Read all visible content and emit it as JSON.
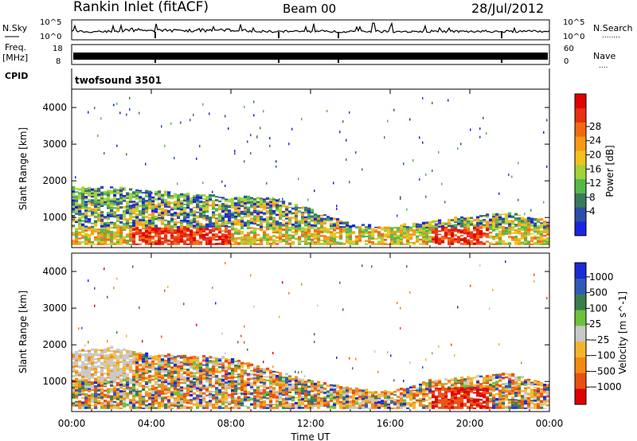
{
  "header": {
    "station": "Rankin Inlet (fitACF)",
    "beam": "Beam 00",
    "date": "28/Jul/2012"
  },
  "noise_panel": {
    "left_label": "N.Sky",
    "right_label": "N.Search",
    "tick_top_left": "10^5",
    "tick_bottom_left": "10^0",
    "tick_top_right": "10^5",
    "tick_bottom_right": "10^0",
    "legend_dots": "........"
  },
  "freq_panel": {
    "left_label": "Freq.",
    "left_unit": "[MHz]",
    "right_label": "Nave",
    "left_ticks": [
      "18",
      "8"
    ],
    "right_ticks": [
      "60",
      "0"
    ],
    "legend_dots": "...."
  },
  "cpid_panel": {
    "label": "CPID",
    "value": "twofsound 3501"
  },
  "chart_data": [
    {
      "type": "heatmap",
      "name": "power",
      "ylabel": "Slant Range [km]",
      "y_ticks": [
        "1000",
        "2000",
        "3000",
        "4000"
      ],
      "ylim": [
        180,
        4500
      ],
      "colorbar_label": "Power [dB]",
      "colorbar_ticks": [
        "4",
        "8",
        "12",
        "16",
        "20",
        "24",
        "28"
      ],
      "colorbar_colors": [
        "#1a24e0",
        "#2b4ea8",
        "#3a7a5a",
        "#55b94a",
        "#a5d13a",
        "#f0c21a",
        "#f79a12",
        "#f26a10",
        "#e83010",
        "#e00000"
      ],
      "data_note_range_km": [
        300,
        2000
      ],
      "activity": {
        "hours": [
          0,
          2,
          4,
          6,
          8,
          10,
          12,
          14,
          16,
          18,
          20,
          22,
          24
        ],
        "top_range_km": [
          1800,
          1800,
          1700,
          1600,
          1550,
          1500,
          1200,
          800,
          700,
          900,
          1000,
          1100,
          900
        ]
      }
    },
    {
      "type": "heatmap",
      "name": "velocity",
      "ylabel": "Slant Range [km]",
      "y_ticks": [
        "1000",
        "2000",
        "3000",
        "4000"
      ],
      "ylim": [
        180,
        4500
      ],
      "colorbar_label": "Velocity [m s^-1]",
      "colorbar_ticks": [
        "1000",
        "500",
        "100",
        "25",
        "−25",
        "−100",
        "−500",
        "−1000"
      ],
      "colorbar_colors": [
        "#1a2ad8",
        "#2f5ab8",
        "#3a7d4a",
        "#6dc13c",
        "#c8c8c8",
        "#f5b52a",
        "#f28a12",
        "#e85010",
        "#e00000"
      ],
      "activity": {
        "hours": [
          0,
          2,
          4,
          6,
          8,
          10,
          12,
          14,
          16,
          18,
          20,
          22,
          24
        ],
        "top_range_km": [
          1800,
          1900,
          1700,
          1700,
          1600,
          1300,
          1000,
          800,
          700,
          1000,
          1100,
          1200,
          900
        ]
      }
    }
  ],
  "time_axis": {
    "xlabel": "Time UT",
    "tick_labels": [
      "00:00",
      "04:00",
      "08:00",
      "12:00",
      "16:00",
      "20:00",
      "00:00"
    ]
  }
}
